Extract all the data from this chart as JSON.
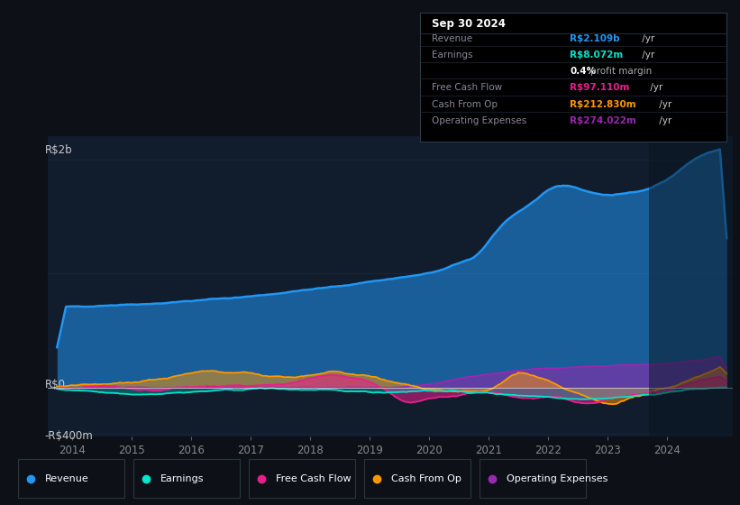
{
  "bg_color": "#0d1117",
  "plot_bg_color": "#111c2d",
  "grid_color": "#1e2d42",
  "title": "Sep 30 2024",
  "ylabel_top": "R$2b",
  "ylabel_zero": "R$0",
  "ylabel_neg": "-R$400m",
  "ylim": [
    -430,
    2200
  ],
  "y_zero": 0,
  "y_top": 2000,
  "y_neg": -400,
  "xlim": [
    2013.6,
    2025.1
  ],
  "xticks": [
    2014,
    2015,
    2016,
    2017,
    2018,
    2019,
    2020,
    2021,
    2022,
    2023,
    2024
  ],
  "colors": {
    "revenue": "#2196f3",
    "earnings": "#00e5cc",
    "free_cash_flow": "#e91e8c",
    "cash_from_op": "#ff9800",
    "operating_expenses": "#9c27b0"
  },
  "info_box": {
    "title": "Sep 30 2024",
    "rows": [
      {
        "label": "Revenue",
        "value": "R$2.109b",
        "suffix": " /yr",
        "value_color": "#2196f3"
      },
      {
        "label": "Earnings",
        "value": "R$8.072m",
        "suffix": " /yr",
        "value_color": "#00e5cc"
      },
      {
        "label": "",
        "value": "0.4%",
        "suffix": " profit margin",
        "value_color": "#ffffff",
        "bold_part": true
      },
      {
        "label": "Free Cash Flow",
        "value": "R$97.110m",
        "suffix": " /yr",
        "value_color": "#e91e8c"
      },
      {
        "label": "Cash From Op",
        "value": "R$212.830m",
        "suffix": " /yr",
        "value_color": "#ff9800"
      },
      {
        "label": "Operating Expenses",
        "value": "R$274.022m",
        "suffix": " /yr",
        "value_color": "#9c27b0"
      }
    ]
  },
  "legend": [
    {
      "label": "Revenue",
      "color": "#2196f3"
    },
    {
      "label": "Earnings",
      "color": "#00e5cc"
    },
    {
      "label": "Free Cash Flow",
      "color": "#e91e8c"
    },
    {
      "label": "Cash From Op",
      "color": "#ff9800"
    },
    {
      "label": "Operating Expenses",
      "color": "#9c27b0"
    }
  ]
}
